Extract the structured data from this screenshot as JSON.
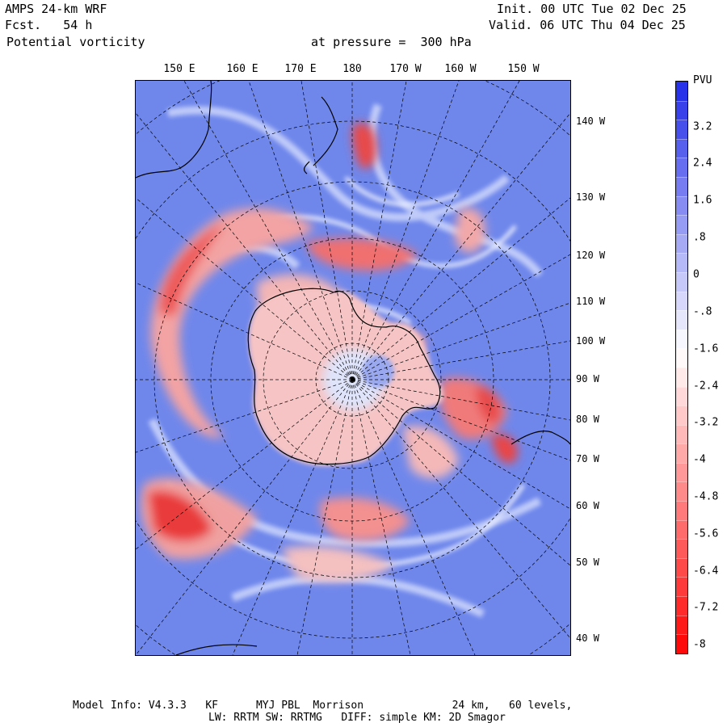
{
  "header": {
    "model": "AMPS 24-km WRF",
    "forecast": "Fcst.   54 h",
    "field": "Potential vorticity",
    "level": "at pressure =  300 hPa",
    "init": "Init. 00 UTC Tue 02 Dec 25",
    "valid": "Valid. 06 UTC Thu 04 Dec 25"
  },
  "map": {
    "top_longitudes": [
      "150 E",
      "160 E",
      "170 E",
      "180",
      "170 W",
      "160 W",
      "150 W"
    ],
    "right_longitudes": [
      "140 W",
      "130 W",
      "120 W",
      "110 W",
      "100 W",
      "90 W",
      "80 W",
      "70 W",
      "60 W",
      "50 W",
      "40 W"
    ],
    "colors": {
      "positive": "#2b3be8",
      "negative": "#ff1a1a",
      "neutral": "#ffffff",
      "coast": "#000000"
    }
  },
  "colorbar": {
    "title": "PVU",
    "labels": [
      "3.2",
      "2.4",
      "1.6",
      ".8",
      "0",
      "-.8",
      "-1.6",
      "-2.4",
      "-3.2",
      "-4",
      "-4.8",
      "-5.6",
      "-6.4",
      "-7.2",
      "-8"
    ]
  },
  "footer": {
    "line1": "Model Info: V4.3.3   KF      MYJ PBL  Morrison              24 km,   60 levels,",
    "line2": "LW: RRTM SW: RRTMG   DIFF: simple KM: 2D Smagor"
  }
}
